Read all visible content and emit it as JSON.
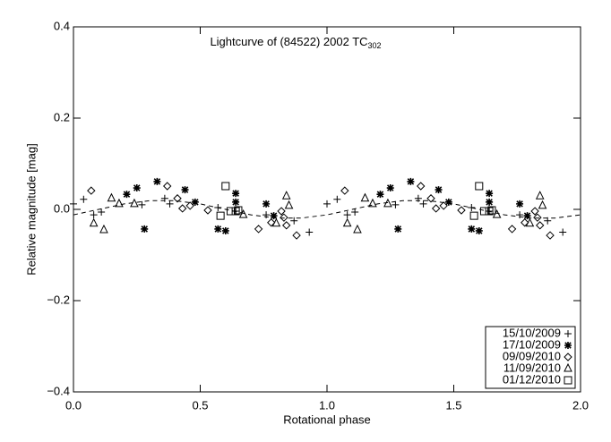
{
  "chart_data": {
    "type": "scatter",
    "title": "Lightcurve of (84522) 2002 TC",
    "title_subscript": "302",
    "x_label": "Rotational phase",
    "y_label": "Relative magnitude [mag]",
    "xlim": [
      0,
      2
    ],
    "ylim": [
      -0.4,
      0.4
    ],
    "xticks": [
      {
        "value": 0,
        "label": "0.0"
      },
      {
        "value": 0.5,
        "label": "0.5"
      },
      {
        "value": 1,
        "label": "1.0"
      },
      {
        "value": 1.5,
        "label": "1.5"
      },
      {
        "value": 2,
        "label": "2.0"
      }
    ],
    "yticks": [
      {
        "value": -0.4,
        "label": "−0.4"
      },
      {
        "value": -0.2,
        "label": "−0.2"
      },
      {
        "value": 0,
        "label": "0.0"
      },
      {
        "value": 0.2,
        "label": "0.2"
      },
      {
        "value": 0.4,
        "label": "0.4"
      }
    ],
    "legend": "lower right",
    "series": [
      {
        "name": "15/10/2009",
        "marker": "plus",
        "color": "#000000",
        "x": [
          0.04,
          0.0,
          0.08,
          0.11,
          0.27,
          0.36,
          0.38,
          0.57,
          0.64,
          0.76,
          0.87,
          0.93,
          1.04,
          1.0,
          1.08,
          1.11,
          1.27,
          1.36,
          1.38,
          1.57,
          1.64,
          1.76,
          1.87,
          1.93
        ],
        "values": [
          0.022,
          0.012,
          -0.012,
          -0.006,
          0.01,
          0.024,
          0.012,
          0.004,
          -0.004,
          -0.012,
          -0.025,
          -0.05,
          0.022,
          0.012,
          -0.012,
          -0.006,
          0.01,
          0.024,
          0.012,
          0.004,
          -0.004,
          -0.012,
          -0.025,
          -0.05
        ]
      },
      {
        "name": "17/10/2009",
        "marker": "star",
        "color": "#000000",
        "x": [
          0.21,
          0.25,
          0.33,
          0.28,
          0.44,
          0.48,
          0.57,
          0.6,
          0.64,
          0.64,
          0.79,
          0.76,
          1.21,
          1.25,
          1.33,
          1.28,
          1.44,
          1.48,
          1.57,
          1.6,
          1.64,
          1.64,
          1.79,
          1.76
        ],
        "values": [
          0.033,
          0.047,
          0.061,
          -0.043,
          0.043,
          0.016,
          -0.043,
          -0.047,
          0.035,
          0.016,
          -0.014,
          0.012,
          0.033,
          0.047,
          0.061,
          -0.043,
          0.043,
          0.016,
          -0.043,
          -0.047,
          0.035,
          0.016,
          -0.014,
          0.012
        ]
      },
      {
        "name": "09/09/2010",
        "marker": "diamond",
        "color": "#000000",
        "x": [
          0.07,
          0.37,
          0.41,
          0.43,
          0.46,
          0.53,
          0.73,
          0.78,
          0.82,
          0.84,
          0.88,
          0.83,
          1.07,
          1.37,
          1.41,
          1.43,
          1.46,
          1.53,
          1.73,
          1.78,
          1.82,
          1.84,
          1.88,
          1.83
        ],
        "values": [
          0.041,
          0.051,
          0.024,
          0.002,
          0.008,
          -0.002,
          -0.043,
          -0.029,
          -0.004,
          -0.035,
          -0.057,
          -0.018,
          0.041,
          0.051,
          0.024,
          0.002,
          0.008,
          -0.002,
          -0.043,
          -0.029,
          -0.004,
          -0.035,
          -0.057,
          -0.018
        ]
      },
      {
        "name": "11/09/2010",
        "marker": "triangle",
        "color": "#000000",
        "x": [
          0.08,
          0.12,
          0.15,
          0.18,
          0.24,
          0.67,
          0.8,
          0.84,
          0.85,
          1.08,
          1.12,
          1.15,
          1.18,
          1.24,
          1.67,
          1.8,
          1.84,
          1.85
        ],
        "values": [
          -0.031,
          -0.045,
          0.024,
          0.012,
          0.012,
          -0.012,
          -0.031,
          0.029,
          0.008,
          -0.031,
          -0.045,
          0.024,
          0.012,
          0.012,
          -0.012,
          -0.031,
          0.029,
          0.008
        ]
      },
      {
        "name": "01/12/2010",
        "marker": "square",
        "color": "#000000",
        "x": [
          0.6,
          0.62,
          0.64,
          0.58,
          0.65,
          1.6,
          1.62,
          1.64,
          1.58,
          1.65
        ],
        "values": [
          0.051,
          -0.004,
          -0.004,
          -0.014,
          -0.002,
          0.051,
          -0.004,
          -0.004,
          -0.014,
          -0.002
        ]
      }
    ],
    "fit": {
      "dash": true,
      "color": "#000000",
      "x": [
        0,
        0.1,
        0.2,
        0.3,
        0.4,
        0.5,
        0.6,
        0.7,
        0.8,
        0.9,
        1.0,
        1.1,
        1.2,
        1.3,
        1.4,
        1.5,
        1.6,
        1.7,
        1.8,
        1.9,
        2.0
      ],
      "values": [
        -0.012,
        0,
        0.012,
        0.019,
        0.019,
        0.012,
        0,
        -0.012,
        -0.019,
        -0.019,
        -0.012,
        0,
        0.012,
        0.019,
        0.019,
        0.012,
        0,
        -0.012,
        -0.019,
        -0.019,
        -0.012
      ]
    }
  }
}
